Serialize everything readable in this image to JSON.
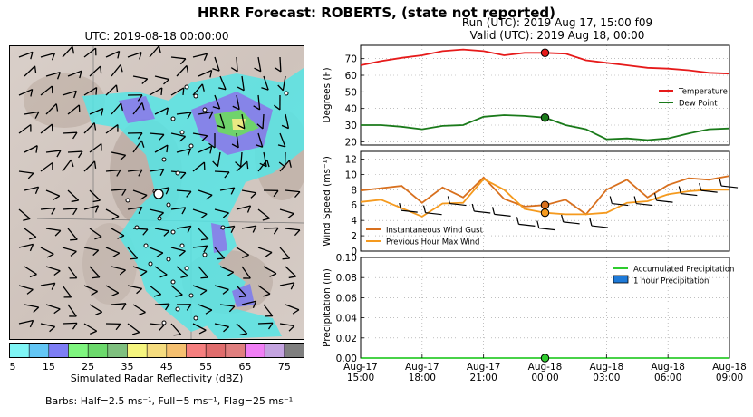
{
  "header": {
    "title": "HRRR Forecast: ROBERTS, (state not reported)",
    "run_line": "Run (UTC): 2019 Aug 17, 15:00 f09",
    "valid_line": "Valid (UTC): 2019 Aug 18, 00:00"
  },
  "map": {
    "title": "UTC: 2019-08-18 00:00:00",
    "colorbar_label": "Simulated Radar Reflectivity (dBZ)",
    "colorbar_ticks": [
      "5",
      "15",
      "25",
      "35",
      "45",
      "55",
      "65",
      "75"
    ],
    "colorbar_colors": [
      "#7ff5f5",
      "#63c6f5",
      "#7e7ef5",
      "#7ff57f",
      "#6cd96c",
      "#7fc07f",
      "#f5f57f",
      "#f5dc7f",
      "#f5c070",
      "#f57f7f",
      "#e06d6d",
      "#e07f7f",
      "#f07ff5",
      "#c4a4e0",
      "#7f7f7f"
    ],
    "barb_note": "Barbs: Half=2.5 ms⁻¹, Full=5 ms⁻¹, Flag=25 ms⁻¹"
  },
  "colors": {
    "temperature": "#e61a1a",
    "dew_point": "#1a7a1a",
    "gust": "#d8701e",
    "max_wind": "#f59a1e",
    "accum_precip": "#2ecc2e",
    "hour_precip": "#1e7ad8"
  },
  "chart_data": [
    {
      "type": "line",
      "ylabel": "Degrees (F)",
      "ylim": [
        18,
        78
      ],
      "yticks": [
        20,
        30,
        40,
        50,
        60,
        70
      ],
      "x": [
        "2019-08-17 15:00",
        "2019-08-17 16:00",
        "2019-08-17 17:00",
        "2019-08-17 18:00",
        "2019-08-17 19:00",
        "2019-08-17 20:00",
        "2019-08-17 21:00",
        "2019-08-17 22:00",
        "2019-08-17 23:00",
        "2019-08-18 00:00",
        "2019-08-18 01:00",
        "2019-08-18 02:00",
        "2019-08-18 03:00",
        "2019-08-18 04:00",
        "2019-08-18 05:00",
        "2019-08-18 06:00",
        "2019-08-18 07:00",
        "2019-08-18 08:00",
        "2019-08-18 09:00"
      ],
      "series": [
        {
          "name": "Temperature",
          "values": [
            66,
            68.5,
            70.5,
            72,
            74.5,
            75.5,
            74.5,
            72,
            73.5,
            73.5,
            73,
            69,
            67.5,
            66,
            64.5,
            64,
            63,
            61.5,
            61
          ]
        },
        {
          "name": "Dew Point",
          "values": [
            30,
            30,
            29,
            27.5,
            29.5,
            30,
            35,
            36,
            35.5,
            34.5,
            30,
            27.5,
            21.5,
            22,
            21,
            22,
            25,
            27.5,
            28
          ]
        }
      ],
      "highlight_x": "2019-08-18 00:00",
      "legend": "right",
      "grid": true
    },
    {
      "type": "line",
      "ylabel": "Wind Speed (ms⁻¹)",
      "ylim": [
        0,
        13
      ],
      "yticks": [
        0,
        2,
        4,
        6,
        8,
        10,
        12
      ],
      "x": [
        "2019-08-17 15:00",
        "2019-08-17 16:00",
        "2019-08-17 17:00",
        "2019-08-17 18:00",
        "2019-08-17 19:00",
        "2019-08-17 20:00",
        "2019-08-17 21:00",
        "2019-08-17 22:00",
        "2019-08-17 23:00",
        "2019-08-18 00:00",
        "2019-08-18 01:00",
        "2019-08-18 02:00",
        "2019-08-18 03:00",
        "2019-08-18 04:00",
        "2019-08-18 05:00",
        "2019-08-18 06:00",
        "2019-08-18 07:00",
        "2019-08-18 08:00",
        "2019-08-18 09:00"
      ],
      "series": [
        {
          "name": "Instantaneous Wind Gust",
          "values": [
            7.9,
            8.2,
            8.5,
            6.3,
            8.3,
            7.0,
            9.6,
            6.8,
            5.8,
            6.0,
            6.7,
            4.8,
            8.0,
            9.3,
            7.0,
            8.6,
            9.5,
            9.3,
            9.8
          ]
        },
        {
          "name": "Previous Hour Max Wind",
          "values": [
            6.4,
            6.7,
            5.6,
            4.5,
            6.2,
            6.3,
            9.4,
            8.0,
            5.5,
            5.0,
            4.8,
            4.8,
            5.0,
            6.3,
            6.5,
            7.4,
            7.8,
            8.0,
            8.0
          ]
        }
      ],
      "highlight_x": "2019-08-18 00:00",
      "legend": "lower left",
      "grid": true
    },
    {
      "type": "bar",
      "ylabel": "Precipitation (in)",
      "ylim": [
        0,
        0.1
      ],
      "yticks": [
        "0.00",
        "0.02",
        "0.04",
        "0.06",
        "0.08",
        "0.10"
      ],
      "x": [
        "2019-08-17 15:00",
        "2019-08-17 16:00",
        "2019-08-17 17:00",
        "2019-08-17 18:00",
        "2019-08-17 19:00",
        "2019-08-17 20:00",
        "2019-08-17 21:00",
        "2019-08-17 22:00",
        "2019-08-17 23:00",
        "2019-08-18 00:00",
        "2019-08-18 01:00",
        "2019-08-18 02:00",
        "2019-08-18 03:00",
        "2019-08-18 04:00",
        "2019-08-18 05:00",
        "2019-08-18 06:00",
        "2019-08-18 07:00",
        "2019-08-18 08:00",
        "2019-08-18 09:00"
      ],
      "series": [
        {
          "name": "Accumulated Precipitation",
          "values": [
            0,
            0,
            0,
            0,
            0,
            0,
            0,
            0,
            0,
            0,
            0,
            0,
            0,
            0,
            0,
            0,
            0,
            0,
            0
          ]
        },
        {
          "name": "1 hour Precipitation",
          "values": [
            0,
            0,
            0,
            0,
            0,
            0,
            0,
            0,
            0,
            0,
            0,
            0,
            0,
            0,
            0,
            0,
            0,
            0,
            0
          ]
        }
      ],
      "highlight_x": "2019-08-18 00:00",
      "legend": "top-right",
      "grid": true
    }
  ],
  "x_axis": {
    "tick_labels": [
      {
        "top": "Aug-17",
        "bottom": "15:00"
      },
      {
        "top": "Aug-17",
        "bottom": "18:00"
      },
      {
        "top": "Aug-17",
        "bottom": "21:00"
      },
      {
        "top": "Aug-18",
        "bottom": "00:00"
      },
      {
        "top": "Aug-18",
        "bottom": "03:00"
      },
      {
        "top": "Aug-18",
        "bottom": "06:00"
      },
      {
        "top": "Aug-18",
        "bottom": "09:00"
      }
    ]
  }
}
